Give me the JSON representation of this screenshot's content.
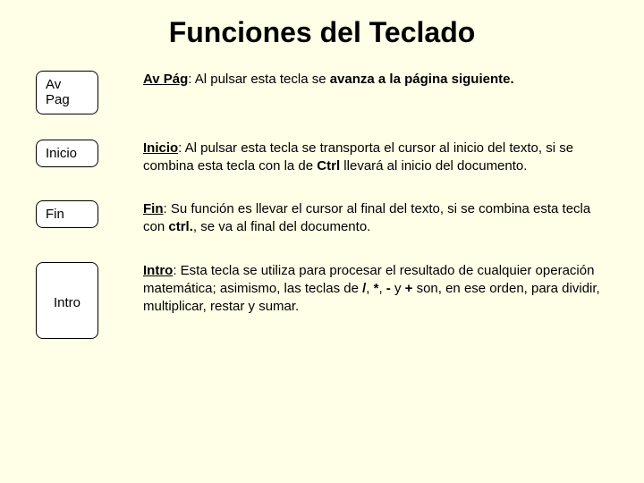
{
  "title": "Funciones del Teclado",
  "rows": [
    {
      "key_label": "Av\nPag",
      "key_class": "wide",
      "lead": "Av Pág",
      "segments": [
        {
          "t": ": Al pulsar esta tecla se "
        },
        {
          "t": "avanza a la página siguiente.",
          "b": true
        }
      ]
    },
    {
      "key_label": "Inicio",
      "key_class": "wide",
      "lead": "Inicio",
      "segments": [
        {
          "t": ": Al pulsar esta tecla  se transporta el cursor al inicio del texto, si se combina esta tecla con la de "
        },
        {
          "t": "Ctrl",
          "b": true
        },
        {
          "t": "  llevará al inicio del documento."
        }
      ]
    },
    {
      "key_label": "Fin",
      "key_class": "wide",
      "lead": "Fin",
      "segments": [
        {
          "t": ": Su función es llevar el cursor al final del texto, si se combina esta tecla con "
        },
        {
          "t": "ctrl.",
          "b": true
        },
        {
          "t": ", se va al final del documento."
        }
      ]
    },
    {
      "key_label": "Intro",
      "key_class": "tall",
      "lead": "Intro",
      "segments": [
        {
          "t": ": Esta tecla se utiliza para procesar el resultado de cualquier operación matemática; asimismo, las teclas de "
        },
        {
          "t": "/",
          "b": true
        },
        {
          "t": ", "
        },
        {
          "t": "*",
          "b": true
        },
        {
          "t": ", "
        },
        {
          "t": "-",
          "b": true
        },
        {
          "t": " y "
        },
        {
          "t": "+",
          "b": true
        },
        {
          "t": " son, en ese orden, para dividir, multiplicar, restar y sumar."
        }
      ]
    }
  ]
}
